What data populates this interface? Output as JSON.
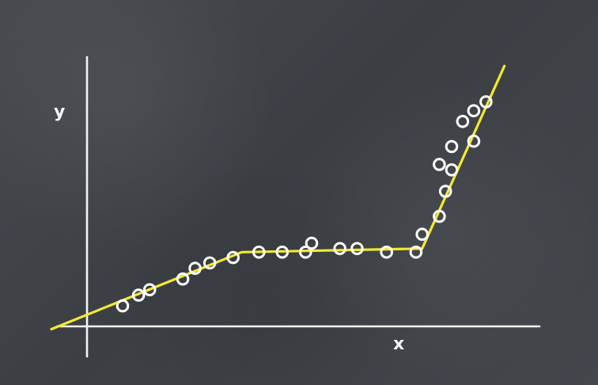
{
  "chart_data": {
    "type": "scatter",
    "xlabel": "x",
    "ylabel": "y",
    "xlim": [
      -3.0,
      34.5
    ],
    "ylim": [
      -2.0,
      18.0
    ],
    "grid": false,
    "legend": "none",
    "colors": {
      "background": "#3f4348",
      "axes": "#f3f3f3",
      "points": "#ffffff",
      "fit_line": "#f2ea2b"
    },
    "series": [
      {
        "points": [
          {
            "x": 2.8,
            "y": 1.8
          },
          {
            "x": 4.1,
            "y": 2.4
          },
          {
            "x": 5.0,
            "y": 2.7
          },
          {
            "x": 7.7,
            "y": 3.3
          },
          {
            "x": 8.7,
            "y": 3.9
          },
          {
            "x": 9.9,
            "y": 4.2
          },
          {
            "x": 11.8,
            "y": 4.5
          },
          {
            "x": 13.9,
            "y": 4.8
          },
          {
            "x": 15.8,
            "y": 4.8
          },
          {
            "x": 17.7,
            "y": 4.8
          },
          {
            "x": 18.2,
            "y": 5.3
          },
          {
            "x": 20.5,
            "y": 5.0
          },
          {
            "x": 21.9,
            "y": 5.0
          },
          {
            "x": 24.3,
            "y": 4.8
          },
          {
            "x": 26.7,
            "y": 4.8
          },
          {
            "x": 27.2,
            "y": 5.8
          },
          {
            "x": 28.6,
            "y": 6.8
          },
          {
            "x": 29.1,
            "y": 8.2
          },
          {
            "x": 28.6,
            "y": 9.7
          },
          {
            "x": 29.6,
            "y": 9.4
          },
          {
            "x": 29.6,
            "y": 10.7
          },
          {
            "x": 31.4,
            "y": 11.0
          },
          {
            "x": 30.5,
            "y": 12.1
          },
          {
            "x": 31.4,
            "y": 12.7
          },
          {
            "x": 32.4,
            "y": 13.2
          }
        ]
      }
    ],
    "fit_line": [
      {
        "x": -3.0,
        "y": 0.5
      },
      {
        "x": 12.5,
        "y": 4.8
      },
      {
        "x": 27.2,
        "y": 5.0
      },
      {
        "x": 33.9,
        "y": 15.2
      }
    ]
  }
}
